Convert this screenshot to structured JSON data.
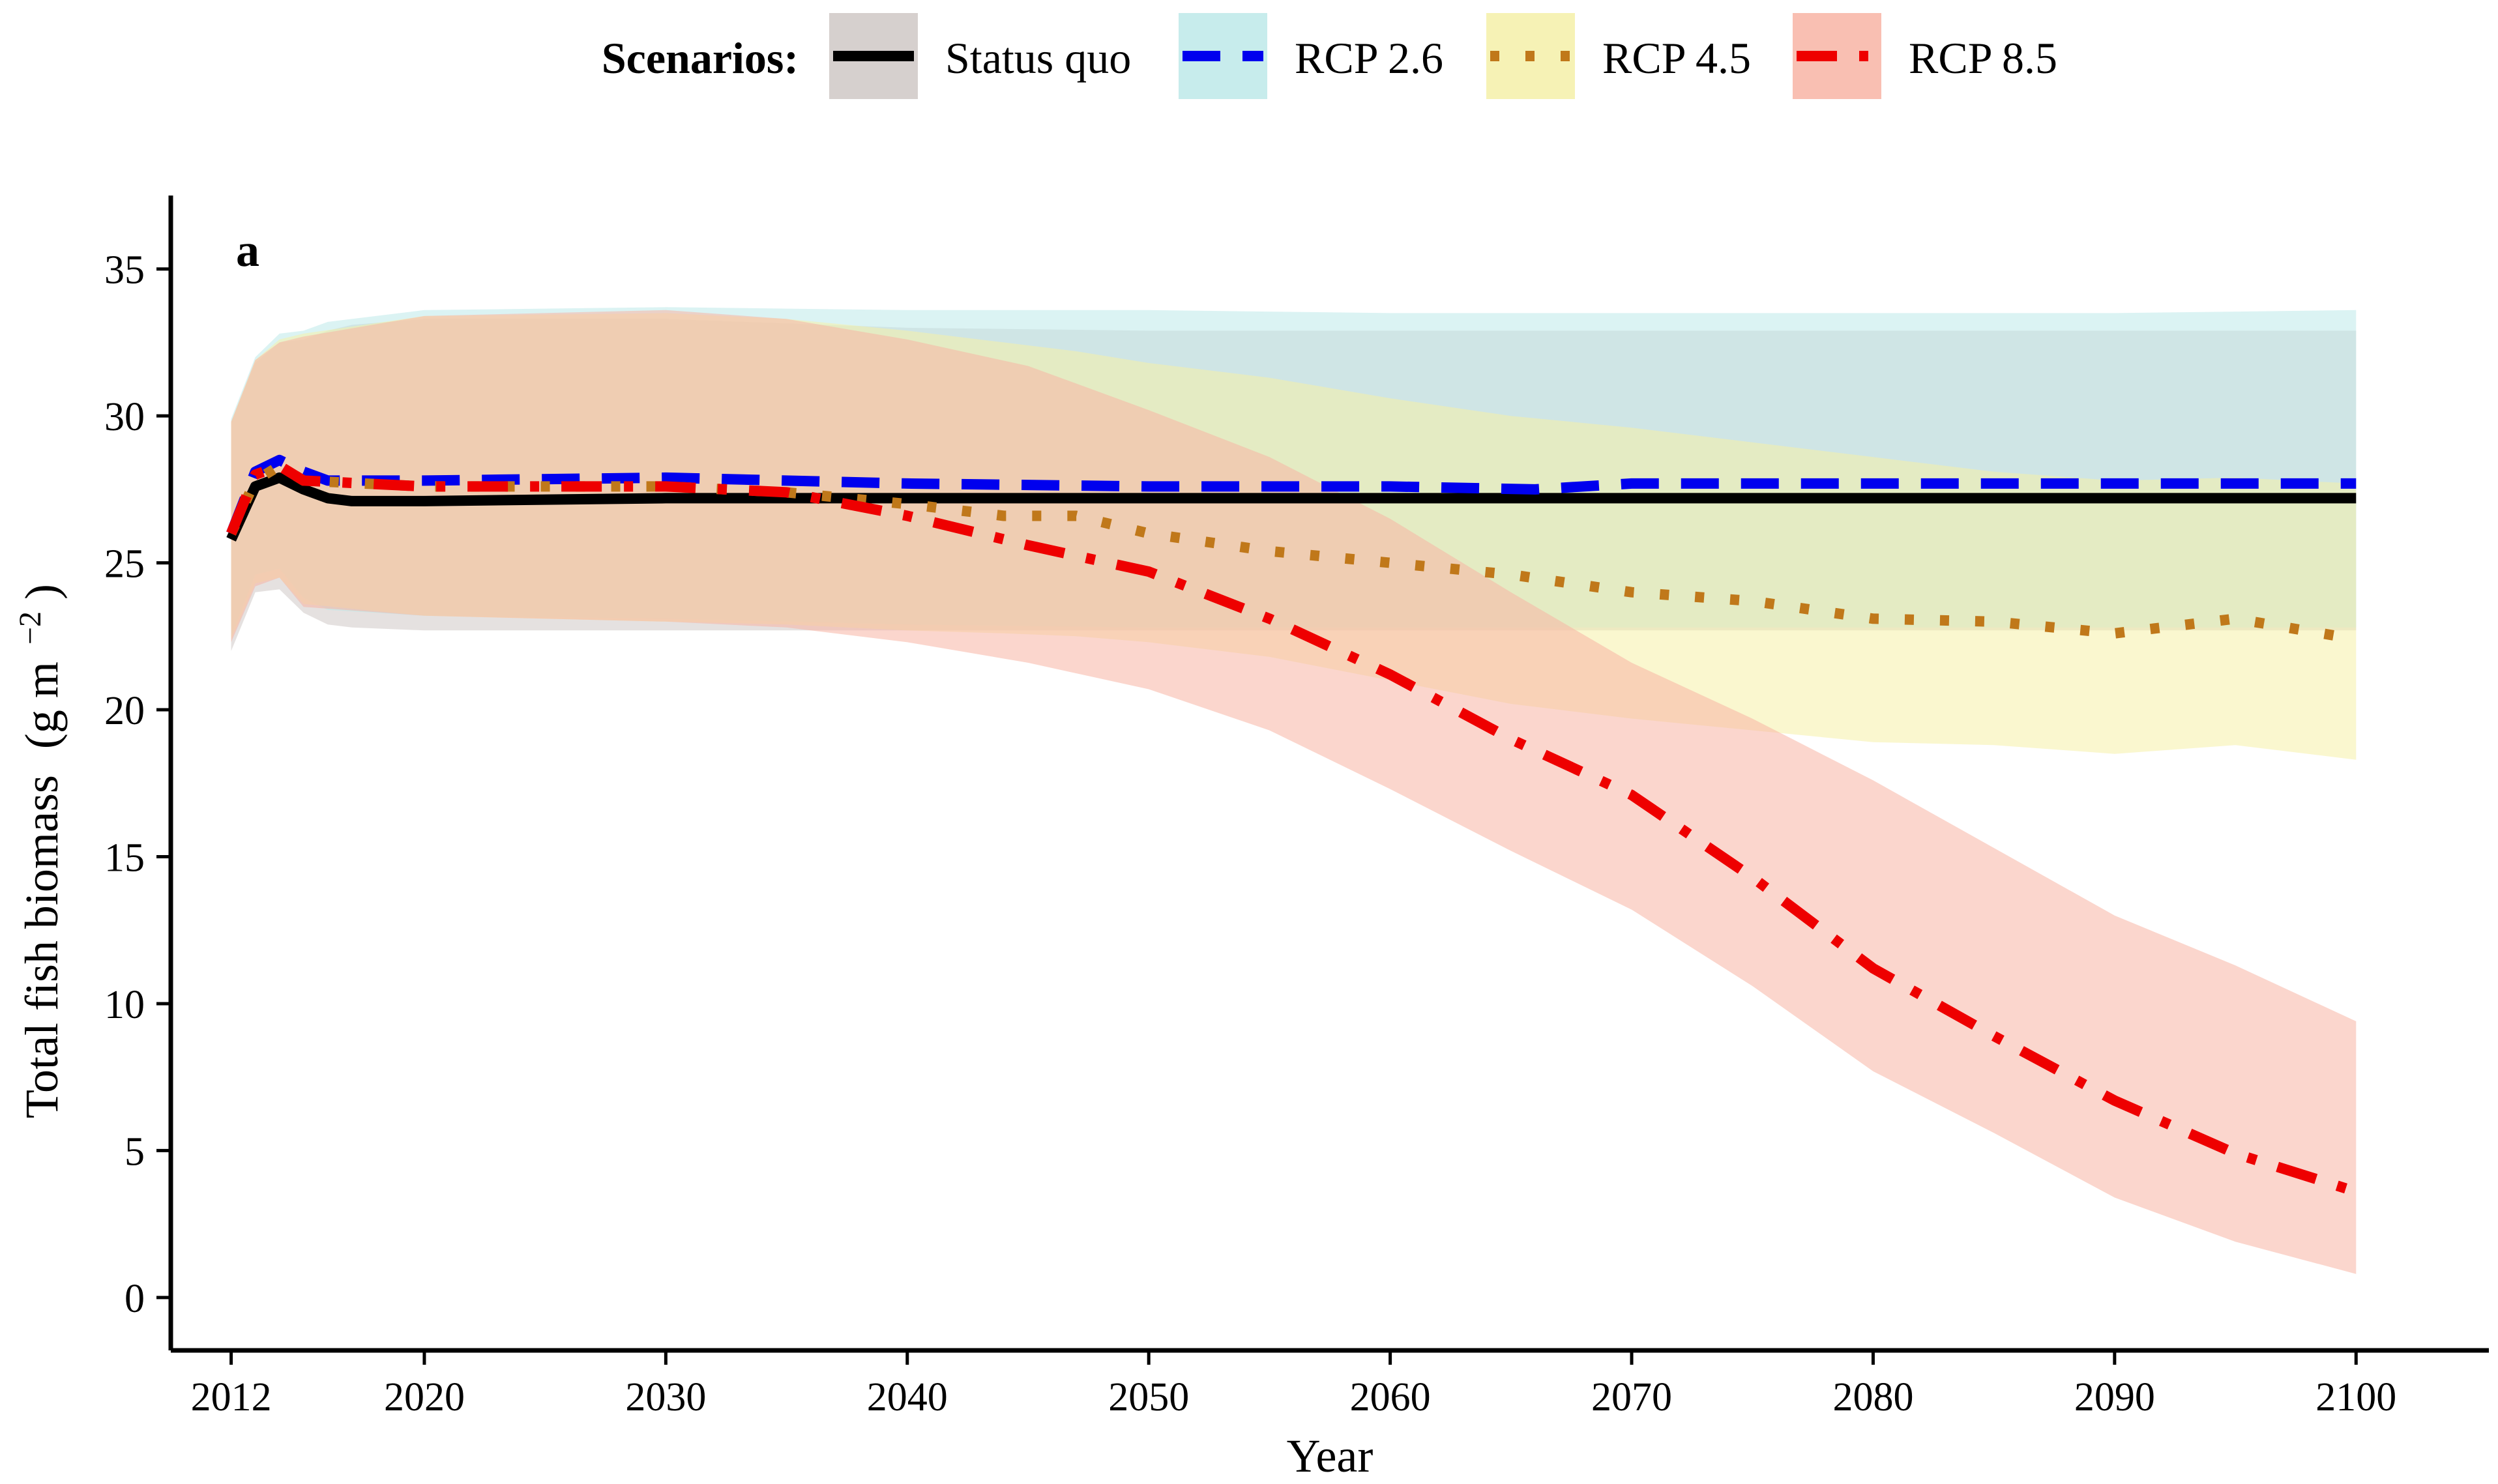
{
  "chart_data": {
    "type": "line",
    "panel_label": "a",
    "xlabel": "Year",
    "ylabel": "Total fish biomass",
    "ylabel_unit": "(g m",
    "ylabel_unit_sup": "−2",
    "ylabel_unit_close": ")",
    "xlim": [
      2009.5,
      2105.5
    ],
    "ylim": [
      -1.8,
      37.5
    ],
    "x_ticks": [
      2012,
      2020,
      2030,
      2040,
      2050,
      2060,
      2070,
      2080,
      2090,
      2100
    ],
    "y_ticks": [
      0,
      5,
      10,
      15,
      20,
      25,
      30,
      35
    ],
    "grid": false,
    "legend": {
      "title": "Scenarios:",
      "position": "top",
      "items": [
        "Status quo",
        "RCP 2.6",
        "RCP 4.5",
        "RCP 8.5"
      ]
    },
    "series": [
      {
        "name": "Status quo",
        "color": "#000000",
        "band_color": "#cfc8c6",
        "dash": "solid",
        "x": [
          2012,
          2013,
          2014,
          2015,
          2016,
          2017,
          2020,
          2030,
          2040,
          2050,
          2060,
          2070,
          2080,
          2090,
          2100
        ],
        "y": [
          25.8,
          27.6,
          27.9,
          27.5,
          27.2,
          27.1,
          27.1,
          27.2,
          27.2,
          27.2,
          27.2,
          27.2,
          27.2,
          27.2,
          27.2
        ],
        "lower": [
          22.0,
          24.0,
          24.1,
          23.3,
          22.9,
          22.8,
          22.7,
          22.7,
          22.7,
          22.7,
          22.7,
          22.7,
          22.7,
          22.7,
          22.7
        ],
        "upper": [
          29.8,
          31.8,
          32.5,
          32.6,
          32.9,
          33.1,
          33.3,
          33.3,
          33.0,
          32.9,
          32.9,
          32.9,
          32.9,
          32.9,
          32.9
        ]
      },
      {
        "name": "RCP 2.6",
        "color": "#0000ee",
        "band_color": "#bde9e9",
        "dash": "dashed",
        "x": [
          2012,
          2013,
          2014,
          2015,
          2016,
          2020,
          2030,
          2040,
          2050,
          2060,
          2066,
          2070,
          2080,
          2090,
          2100
        ],
        "y": [
          26.0,
          28.1,
          28.5,
          28.1,
          27.8,
          27.8,
          27.9,
          27.7,
          27.6,
          27.6,
          27.5,
          27.7,
          27.7,
          27.7,
          27.7
        ],
        "lower": [
          22.5,
          24.6,
          24.8,
          23.8,
          23.4,
          23.2,
          23.1,
          22.9,
          22.8,
          22.8,
          22.8,
          22.8,
          22.8,
          22.8,
          22.8
        ],
        "upper": [
          29.9,
          32.0,
          32.8,
          32.9,
          33.2,
          33.6,
          33.7,
          33.6,
          33.6,
          33.5,
          33.5,
          33.5,
          33.5,
          33.5,
          33.6
        ]
      },
      {
        "name": "RCP 4.5",
        "color": "#c0781a",
        "band_color": "#f5f0a8",
        "dash": "dotted",
        "x": [
          2012,
          2013,
          2014,
          2015,
          2020,
          2030,
          2035,
          2040,
          2044,
          2047,
          2050,
          2055,
          2060,
          2065,
          2070,
          2075,
          2080,
          2085,
          2090,
          2095,
          2100
        ],
        "y": [
          26.0,
          27.8,
          28.3,
          27.8,
          27.6,
          27.6,
          27.4,
          27.0,
          26.6,
          26.6,
          26.0,
          25.4,
          25.0,
          24.6,
          24.0,
          23.7,
          23.1,
          23.0,
          22.6,
          23.1,
          22.4
        ],
        "lower": [
          22.4,
          24.3,
          24.5,
          23.6,
          23.2,
          23.0,
          22.9,
          22.7,
          22.6,
          22.5,
          22.3,
          21.8,
          21.0,
          20.2,
          19.7,
          19.3,
          18.9,
          18.8,
          18.5,
          18.8,
          18.3
        ],
        "upper": [
          29.8,
          31.9,
          32.6,
          32.8,
          33.4,
          33.5,
          33.3,
          32.9,
          32.5,
          32.2,
          31.8,
          31.3,
          30.6,
          30.0,
          29.6,
          29.1,
          28.6,
          28.1,
          27.8,
          27.9,
          27.7
        ]
      },
      {
        "name": "RCP 8.5",
        "color": "#ee0000",
        "band_color": "#f8b4a4",
        "dash": "dashdot",
        "x": [
          2012,
          2013,
          2014,
          2015,
          2020,
          2030,
          2035,
          2040,
          2045,
          2050,
          2055,
          2060,
          2065,
          2070,
          2075,
          2080,
          2085,
          2090,
          2095,
          2100
        ],
        "y": [
          26.0,
          28.0,
          28.3,
          27.8,
          27.6,
          27.6,
          27.4,
          26.6,
          25.6,
          24.7,
          23.1,
          21.2,
          19.0,
          17.1,
          14.3,
          11.2,
          8.9,
          6.7,
          4.9,
          3.6
        ],
        "lower": [
          22.3,
          24.2,
          24.5,
          23.5,
          23.2,
          23.0,
          22.8,
          22.3,
          21.6,
          20.7,
          19.3,
          17.3,
          15.2,
          13.2,
          10.6,
          7.7,
          5.6,
          3.4,
          1.9,
          0.8
        ],
        "upper": [
          29.8,
          31.9,
          32.5,
          32.7,
          33.4,
          33.6,
          33.3,
          32.6,
          31.7,
          30.2,
          28.6,
          26.5,
          24.0,
          21.6,
          19.7,
          17.6,
          15.3,
          13.0,
          11.3,
          9.4
        ]
      }
    ]
  }
}
